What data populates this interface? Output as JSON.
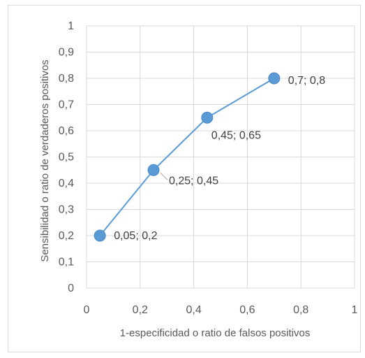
{
  "chart_data": {
    "type": "scatter",
    "title": "",
    "xlabel": "1-especificidad o ratio de falsos positivos",
    "ylabel": "Sensibilidad o ratio de verdaderos positivos",
    "xlim": [
      0,
      1
    ],
    "ylim": [
      0,
      1
    ],
    "x_ticks": [
      "0",
      "0,2",
      "0,4",
      "0,6",
      "0,8",
      "1"
    ],
    "y_ticks": [
      "0",
      "0,1",
      "0,2",
      "0,3",
      "0,4",
      "0,5",
      "0,6",
      "0,7",
      "0,8",
      "0,9",
      "1"
    ],
    "grid": true,
    "legend": "none",
    "series": [
      {
        "color": "#5b9bd5",
        "points": [
          {
            "x": 0.05,
            "y": 0.2,
            "label": "0,05; 0,2"
          },
          {
            "x": 0.25,
            "y": 0.45,
            "label": "0,25; 0,45"
          },
          {
            "x": 0.45,
            "y": 0.65,
            "label": "0,45; 0,65"
          },
          {
            "x": 0.7,
            "y": 0.8,
            "label": "0,7; 0,8"
          }
        ]
      }
    ]
  }
}
